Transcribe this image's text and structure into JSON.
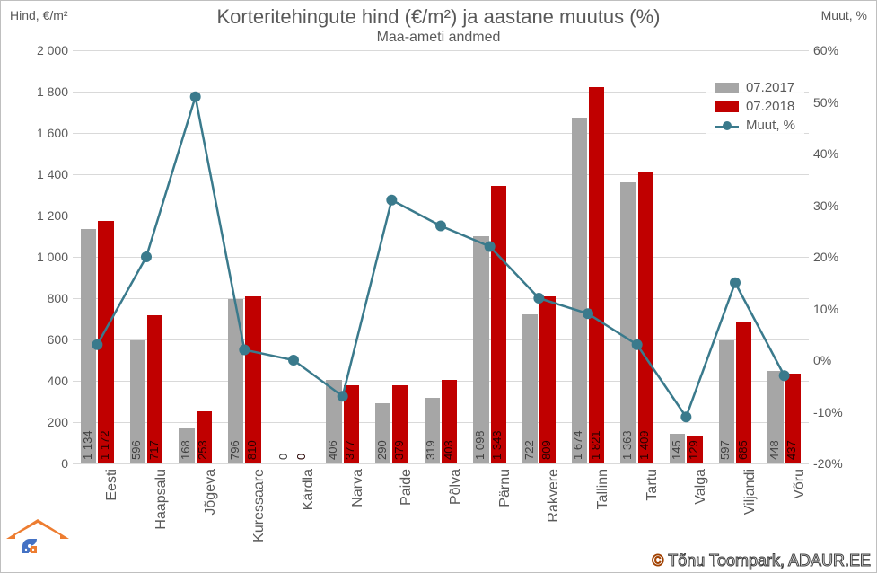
{
  "title": "Korteritehingute hind (€/m²) ja aastane muutus (%)",
  "subtitle": "Maa-ameti andmed",
  "y_left_label": "Hind, €/m²",
  "y_right_label": "Muut, %",
  "legend": {
    "series1": "07.2017",
    "series2": "07.2018",
    "series3": "Muut, %"
  },
  "colors": {
    "bar2017": "#a6a6a6",
    "bar2018": "#c00000",
    "line": "#3a7a8c",
    "marker": "#3a7a8c",
    "grid": "#d9d9d9",
    "text": "#595959",
    "background": "#ffffff"
  },
  "y_left": {
    "min": 0,
    "max": 2000,
    "step": 200
  },
  "y_right": {
    "min": -20,
    "max": 60,
    "step": 10
  },
  "categories": [
    "Eesti",
    "Haapsalu",
    "Jõgeva",
    "Kuressaare",
    "Kärdla",
    "Narva",
    "Paide",
    "Põlva",
    "Pärnu",
    "Rakvere",
    "Tallinn",
    "Tartu",
    "Valga",
    "Viljandi",
    "Võru"
  ],
  "series2017": [
    1134,
    596,
    168,
    796,
    0,
    406,
    290,
    319,
    1098,
    722,
    1674,
    1363,
    145,
    597,
    448
  ],
  "series2018": [
    1172,
    717,
    253,
    810,
    0,
    377,
    379,
    403,
    1343,
    809,
    1821,
    1409,
    129,
    685,
    437
  ],
  "changePct": [
    3,
    20,
    51,
    2,
    0,
    -7,
    31,
    26,
    22,
    12,
    9,
    3,
    -11,
    15,
    -3
  ],
  "credit": "Tõnu Toompark, ADAUR.EE"
}
